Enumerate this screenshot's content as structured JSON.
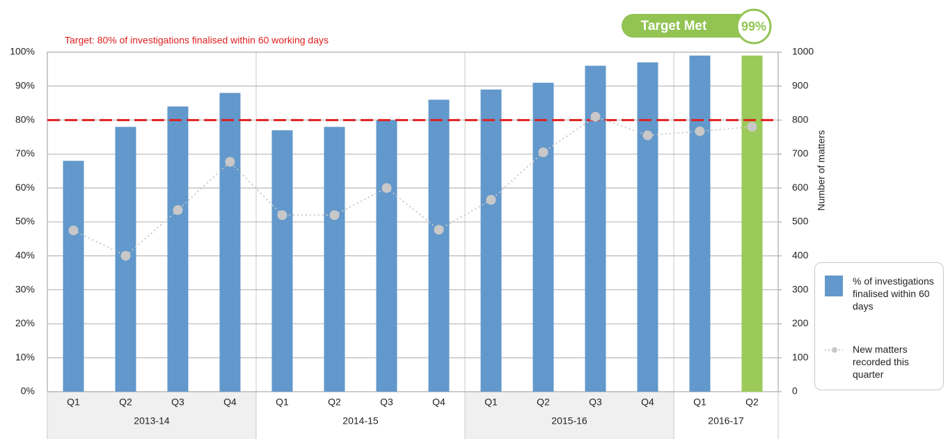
{
  "chart_data": {
    "type": "bar",
    "categories": [
      "Q1",
      "Q2",
      "Q3",
      "Q4",
      "Q1",
      "Q2",
      "Q3",
      "Q4",
      "Q1",
      "Q2",
      "Q3",
      "Q4",
      "Q1",
      "Q2"
    ],
    "groups": [
      {
        "label": "2013-14",
        "span": 4
      },
      {
        "label": "2014-15",
        "span": 4
      },
      {
        "label": "2015-16",
        "span": 4
      },
      {
        "label": "2016-17",
        "span": 2
      }
    ],
    "series": [
      {
        "name": "% of investigations finalised within 60 days",
        "type": "bar",
        "color": "#6298cb",
        "colors": [
          "#6298cb",
          "#6298cb",
          "#6298cb",
          "#6298cb",
          "#6298cb",
          "#6298cb",
          "#6298cb",
          "#6298cb",
          "#6298cb",
          "#6298cb",
          "#6298cb",
          "#6298cb",
          "#6298cb",
          "#9bc95a"
        ],
        "values": [
          68,
          78,
          84,
          88,
          77,
          78,
          80,
          86,
          89,
          91,
          96,
          97,
          99,
          99
        ]
      },
      {
        "name": "New matters recorded this quarter",
        "type": "line",
        "axis": "y2",
        "color": "#c8c8c8",
        "values": [
          475,
          400,
          535,
          677,
          520,
          520,
          600,
          477,
          565,
          705,
          810,
          755,
          767,
          780
        ]
      }
    ],
    "target": {
      "value": 80,
      "label": "Target: 80% of investigations finalised within 60 working days",
      "color": "#e02020"
    },
    "badge": {
      "text": "Target Met",
      "value_label": "99%",
      "color": "#92c353"
    },
    "ylim": [
      0,
      100
    ],
    "yticks": [
      {
        "value": 0,
        "label": "0%"
      },
      {
        "value": 10,
        "label": "10%"
      },
      {
        "value": 20,
        "label": "20%"
      },
      {
        "value": 30,
        "label": "30%"
      },
      {
        "value": 40,
        "label": "40%"
      },
      {
        "value": 50,
        "label": "50%"
      },
      {
        "value": 60,
        "label": "60%"
      },
      {
        "value": 70,
        "label": "70%"
      },
      {
        "value": 80,
        "label": "80%"
      },
      {
        "value": 90,
        "label": "90%"
      },
      {
        "value": 100,
        "label": "100%"
      }
    ],
    "y2label": "Number of matters",
    "y2lim": [
      0,
      1000
    ],
    "y2ticks": [
      0,
      100,
      200,
      300,
      400,
      500,
      600,
      700,
      800,
      900,
      1000
    ],
    "grid": true,
    "legend": "right"
  }
}
